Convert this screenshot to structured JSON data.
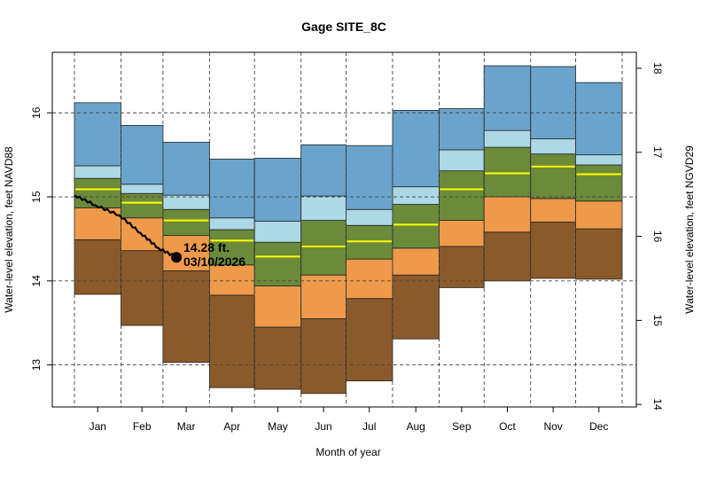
{
  "chart_data": {
    "type": "area",
    "title": "Gage SITE_8C",
    "xlabel": "Month of year",
    "ylabel": "Water-level elevation, feet NAVD88",
    "ylabel_right": "Water-level elevation, feet NGVD29",
    "ylim": [
      12.5,
      16.72
    ],
    "yticks": [
      13,
      14,
      15,
      16
    ],
    "yticks_right": [
      14,
      15,
      16,
      17,
      18
    ],
    "right_axis_offset": 1.47,
    "grid": true,
    "categories": [
      "Jan",
      "Feb",
      "Mar",
      "Apr",
      "May",
      "Jun",
      "Jul",
      "Aug",
      "Sep",
      "Oct",
      "Nov",
      "Dec"
    ],
    "percentile_bands": {
      "min": [
        13.84,
        13.47,
        13.03,
        12.73,
        12.71,
        12.66,
        12.81,
        13.31,
        13.92,
        14.0,
        14.03,
        14.02
      ],
      "p10": [
        14.49,
        14.36,
        14.12,
        13.83,
        13.45,
        13.55,
        13.79,
        14.07,
        14.41,
        14.58,
        14.7,
        14.62
      ],
      "p25": [
        14.87,
        14.75,
        14.54,
        14.19,
        13.94,
        14.07,
        14.26,
        14.39,
        14.72,
        15.0,
        14.98,
        14.95
      ],
      "median": [
        15.09,
        14.93,
        14.72,
        14.48,
        14.29,
        14.41,
        14.47,
        14.67,
        15.09,
        15.28,
        15.36,
        15.27
      ],
      "p75": [
        15.22,
        15.04,
        14.85,
        14.61,
        14.46,
        14.72,
        14.66,
        14.91,
        15.31,
        15.59,
        15.51,
        15.38
      ],
      "p90": [
        15.37,
        15.15,
        15.02,
        14.75,
        14.71,
        15.01,
        14.85,
        15.12,
        15.56,
        15.79,
        15.69,
        15.5
      ],
      "max": [
        16.12,
        15.85,
        15.65,
        15.45,
        15.46,
        15.62,
        15.61,
        16.03,
        16.05,
        16.56,
        16.55,
        16.36
      ]
    },
    "band_colors": {
      "min_p10": "#8b5a2b",
      "p10_p25": "#ee9a4a",
      "p25_p75": "#6b8a3a",
      "p75_p90": "#add8e6",
      "p90_max": "#6aa4cc",
      "median": "#ffff00"
    },
    "current_series": {
      "x": [
        "2026-01-01",
        "2026-01-15",
        "2026-01-31",
        "2026-02-14",
        "2026-02-26",
        "2026-03-10"
      ],
      "y": [
        15.02,
        14.9,
        14.78,
        14.57,
        14.39,
        14.28
      ],
      "color": "#000000"
    },
    "annotation": {
      "value": "14.28 ft.",
      "date": "03/10/2026"
    }
  }
}
